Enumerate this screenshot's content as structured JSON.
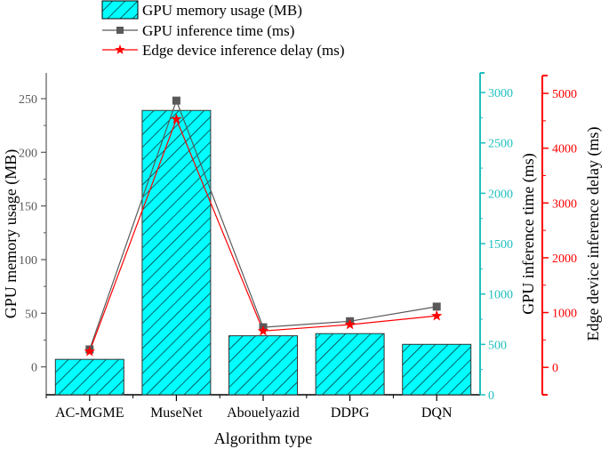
{
  "chart_data": {
    "type": "bar",
    "title": "",
    "xlabel": "Algorithm type",
    "categories": [
      "AC-MGME",
      "MuseNet",
      "Abouelyazid",
      "DDPG",
      "DQN"
    ],
    "series": [
      {
        "name": "GPU memory usage (MB)",
        "type": "bar",
        "axis": "left",
        "values": [
          7,
          239,
          29,
          31,
          21
        ],
        "color": "#00FFFF",
        "hatch": "diagonal"
      },
      {
        "name": "GPU inference time (ms)",
        "type": "line",
        "axis": "right1",
        "marker": "square",
        "values": [
          450,
          2920,
          670,
          730,
          875
        ],
        "color": "#595959"
      },
      {
        "name": "Edge device inference delay (ms)",
        "type": "line",
        "axis": "right2",
        "marker": "star",
        "values": [
          290,
          4530,
          665,
          780,
          940
        ],
        "color": "#FF0000"
      }
    ],
    "axes": {
      "left": {
        "label": "GPU memory usage (MB)",
        "ylim": [
          -26,
          274
        ],
        "ticks": [
          0,
          50,
          100,
          150,
          200,
          250
        ],
        "color": "#595959"
      },
      "right1": {
        "label": "GPU inference time (ms)",
        "ylim": [
          0,
          3195
        ],
        "ticks": [
          0,
          500,
          1000,
          1500,
          2000,
          2500,
          3000
        ],
        "color": "#1FBFBF"
      },
      "right2": {
        "label": "Edge device inference delay (ms)",
        "ylim": [
          -500,
          5325
        ],
        "ticks": [
          0,
          1000,
          2000,
          3000,
          4000,
          5000
        ],
        "color": "#FF0000"
      }
    },
    "grid": false,
    "legend": {
      "placement": "top-center",
      "entries": [
        "GPU memory usage (MB)",
        "GPU inference time (ms)",
        "Edge device inference delay (ms)"
      ]
    }
  }
}
